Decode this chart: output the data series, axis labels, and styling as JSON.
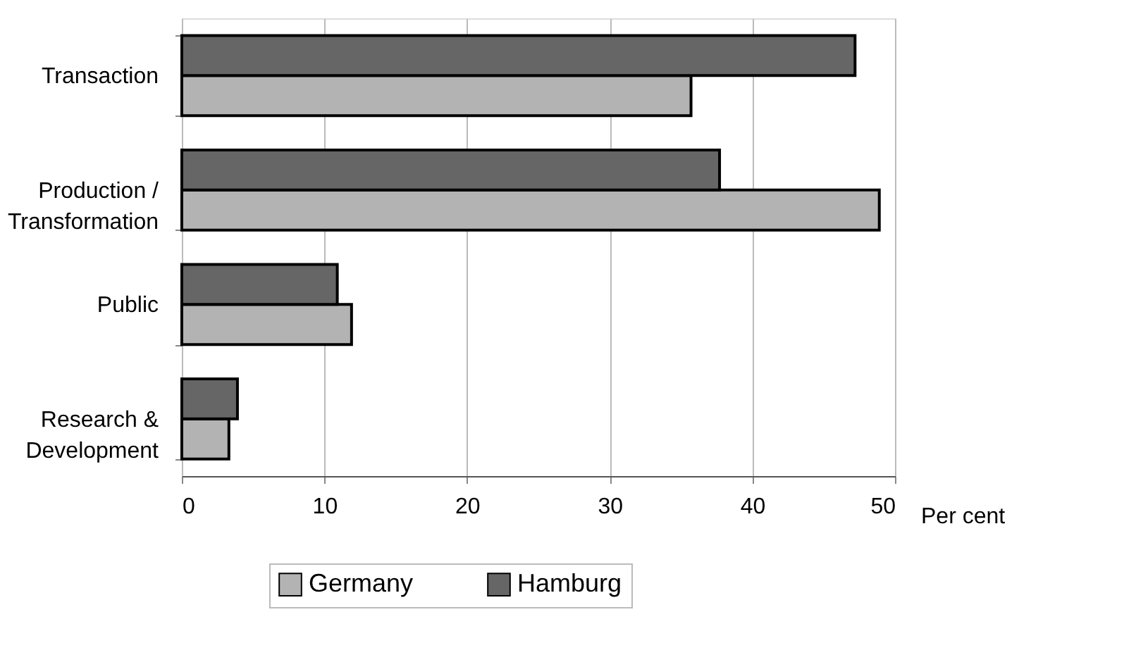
{
  "chart_data": {
    "type": "bar",
    "orientation": "horizontal",
    "xlabel": "Per cent",
    "categories": [
      "Transaction",
      "Production /\nTransformation",
      "Public",
      "Research &\nDevelopment"
    ],
    "series": [
      {
        "name": "Germany",
        "color": "#b3b3b3",
        "values": [
          35.7,
          48.9,
          11.9,
          3.3
        ]
      },
      {
        "name": "Hamburg",
        "color": "#666666",
        "values": [
          47.2,
          37.7,
          10.9,
          3.9
        ]
      }
    ],
    "xlim": [
      0,
      50
    ],
    "xticks": [
      0,
      10,
      20,
      30,
      40,
      50
    ],
    "grid": "x",
    "legend": "bottom"
  }
}
